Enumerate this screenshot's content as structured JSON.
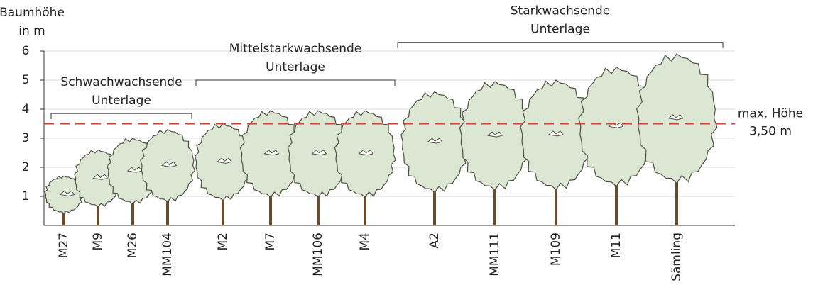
{
  "chart_data": {
    "type": "bar",
    "ylabel": [
      "Baumhöhe",
      "in m"
    ],
    "categories": [
      "M27",
      "M9",
      "M26",
      "MM104",
      "M2",
      "M7",
      "MM106",
      "M4",
      "A2",
      "MM111",
      "M109",
      "M11",
      "Sämling"
    ],
    "values": [
      1.7,
      2.6,
      3.0,
      3.3,
      3.5,
      3.95,
      3.95,
      3.95,
      4.6,
      4.95,
      5.0,
      5.45,
      5.9
    ],
    "color": "#dbe6d3",
    "ylim": [
      0,
      6
    ],
    "yticks": [
      1,
      2,
      3,
      4,
      5,
      6
    ],
    "grid": true,
    "reference_line": {
      "value": 3.5,
      "label": [
        "max. Höhe",
        "3,50 m"
      ],
      "color": "#e0392d"
    },
    "groups": [
      {
        "label": [
          "Schwachwachsende",
          "Unterlage"
        ]
      },
      {
        "label": [
          "Mittelstarkwachsende",
          "Unterlage"
        ]
      },
      {
        "label": [
          "Starkwachsende",
          "Unterlage"
        ]
      }
    ]
  }
}
